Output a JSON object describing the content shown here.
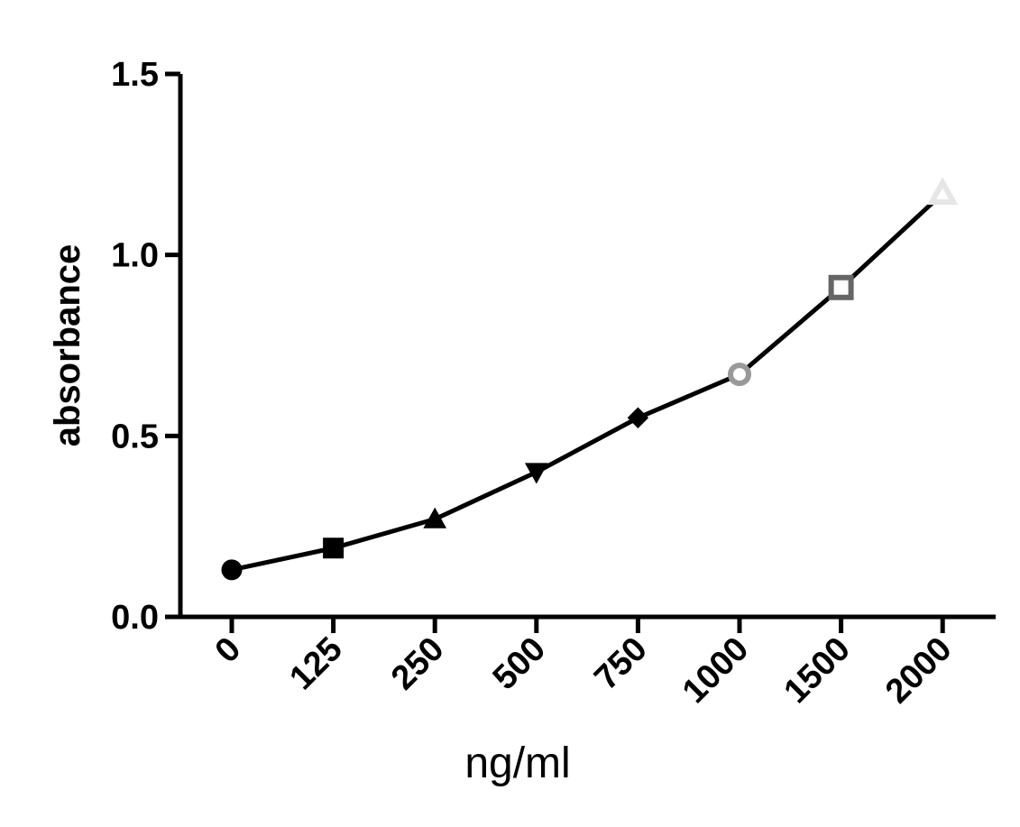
{
  "chart_data": {
    "type": "line",
    "title": "",
    "xlabel": "ng/ml",
    "ylabel": "absorbance",
    "categories": [
      "0",
      "125",
      "250",
      "500",
      "750",
      "1000",
      "1500",
      "2000"
    ],
    "values": [
      0.13,
      0.19,
      0.27,
      0.4,
      0.55,
      0.67,
      0.91,
      1.17
    ],
    "ylim": [
      0,
      1.5
    ],
    "yticks": [
      "0.0",
      "0.5",
      "1.0",
      "1.5"
    ],
    "grid": false,
    "legend": "none",
    "series": [
      {
        "values": [
          0.13,
          0.19,
          0.27,
          0.4,
          0.55,
          0.67,
          0.91,
          1.17
        ],
        "line_color": "#000000",
        "markers": [
          {
            "shape": "circle-filled",
            "color": "#000000"
          },
          {
            "shape": "square-filled",
            "color": "#000000"
          },
          {
            "shape": "triangle-up-filled",
            "color": "#000000"
          },
          {
            "shape": "triangle-down-filled",
            "color": "#000000"
          },
          {
            "shape": "diamond-filled",
            "color": "#000000"
          },
          {
            "shape": "circle-open",
            "color": "#999999"
          },
          {
            "shape": "square-open",
            "color": "#666666"
          },
          {
            "shape": "triangle-up-open",
            "color": "#e6e6e6"
          }
        ]
      }
    ]
  }
}
